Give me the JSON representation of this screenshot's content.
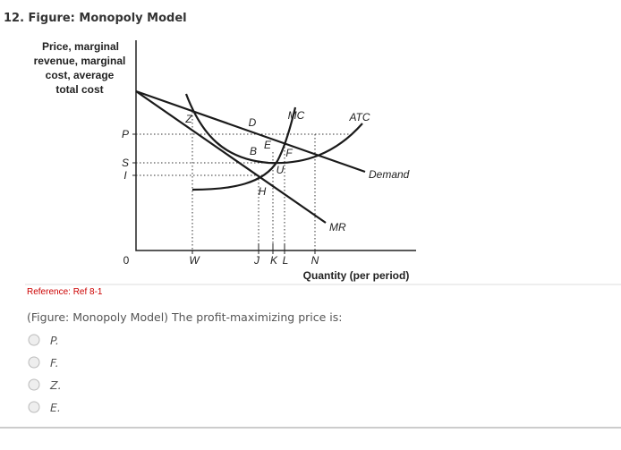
{
  "header": {
    "title": "12. Figure: Monopoly Model"
  },
  "figure": {
    "y_axis_label": [
      "Price, marginal",
      "revenue, marginal",
      "cost, average",
      "total cost"
    ],
    "y_ticks": [
      "P",
      "S",
      "I"
    ],
    "origin": "0",
    "x_ticks": [
      "W",
      "J",
      "K",
      "L",
      "N"
    ],
    "x_axis_label": "Quantity (per period)",
    "curve_labels": {
      "mc": "MC",
      "atc": "ATC",
      "demand": "Demand",
      "mr": "MR"
    },
    "points": {
      "z": "Z",
      "d": "D",
      "e": "E",
      "b": "B",
      "f": "F",
      "u": "U",
      "h": "H"
    }
  },
  "reference": "Reference: Ref 8-1",
  "question": "(Figure: Monopoly Model) The profit-maximizing price is:",
  "options": [
    "P.",
    "F.",
    "Z.",
    "E."
  ]
}
